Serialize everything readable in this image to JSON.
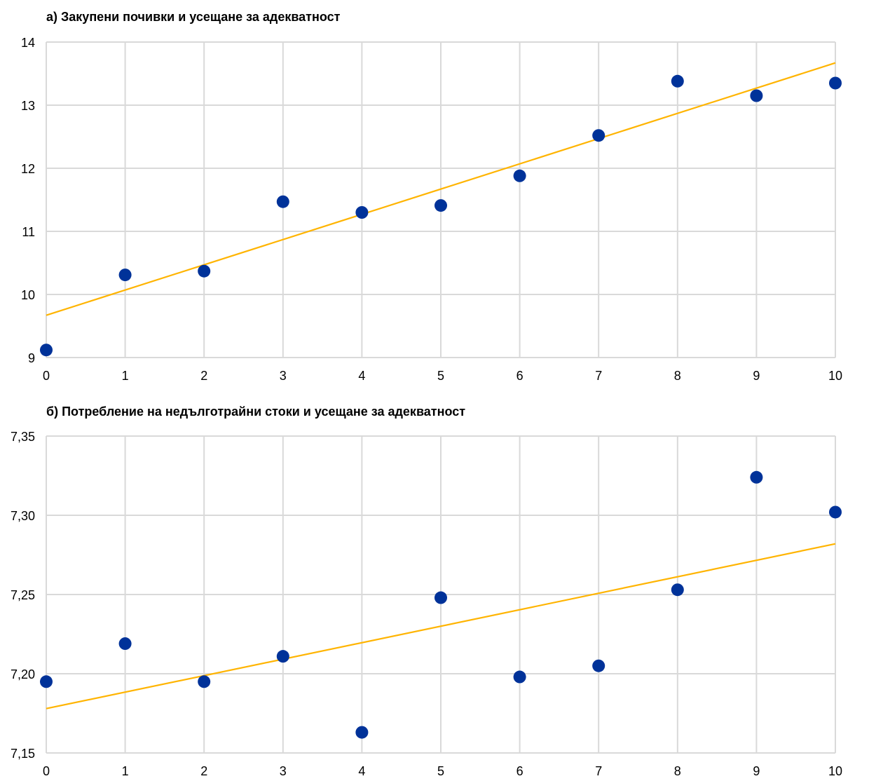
{
  "colors": {
    "points": "#003299",
    "trend": "#ffb400",
    "grid": "#d9d9d9"
  },
  "chart_data": [
    {
      "type": "scatter",
      "title": "а) Закупени почивки и усещане за адекватност",
      "xlabel": "",
      "ylabel": "",
      "xlim": [
        0,
        10
      ],
      "ylim": [
        9,
        14
      ],
      "x_ticks": [
        "0",
        "1",
        "2",
        "3",
        "4",
        "5",
        "6",
        "7",
        "8",
        "9",
        "10"
      ],
      "y_ticks": [
        "9",
        "10",
        "11",
        "12",
        "13",
        "14"
      ],
      "grid": true,
      "series": [
        {
          "x": [
            0,
            1,
            2,
            3,
            4,
            5,
            6,
            7,
            8,
            9,
            10
          ],
          "y": [
            9.12,
            10.31,
            10.37,
            11.47,
            11.3,
            11.41,
            11.88,
            12.52,
            13.38,
            13.15,
            13.35
          ]
        }
      ],
      "trendline": {
        "x": [
          0,
          10
        ],
        "y": [
          9.67,
          13.67
        ]
      }
    },
    {
      "type": "scatter",
      "title": "б) Потребление на недълготрайни стоки и усещане за адекватност",
      "xlabel": "",
      "ylabel": "",
      "xlim": [
        0,
        10
      ],
      "ylim": [
        7.15,
        7.35
      ],
      "x_ticks": [
        "0",
        "1",
        "2",
        "3",
        "4",
        "5",
        "6",
        "7",
        "8",
        "9",
        "10"
      ],
      "y_ticks": [
        "7,15",
        "7,20",
        "7,25",
        "7,30",
        "7,35"
      ],
      "grid": true,
      "series": [
        {
          "x": [
            0,
            1,
            2,
            3,
            4,
            5,
            6,
            7,
            8,
            9,
            10
          ],
          "y": [
            7.195,
            7.219,
            7.195,
            7.211,
            7.163,
            7.248,
            7.198,
            7.205,
            7.253,
            7.324,
            7.302
          ]
        }
      ],
      "trendline": {
        "x": [
          0,
          10
        ],
        "y": [
          7.178,
          7.282
        ]
      }
    }
  ]
}
